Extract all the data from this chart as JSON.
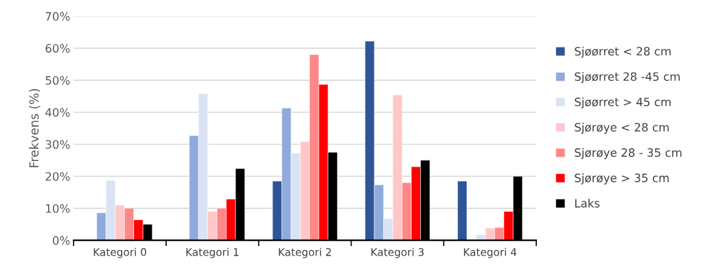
{
  "chart_data": {
    "type": "bar",
    "ylabel": "Frekvens (%)",
    "categories": [
      "Kategori 0",
      "Kategori 1",
      "Kategori 2",
      "Kategori 3",
      "Kategori 4"
    ],
    "series": [
      {
        "name": "Sjøørret < 28 cm",
        "color": "#2f5597",
        "values": [
          null,
          null,
          18.5,
          62.2,
          18.5
        ]
      },
      {
        "name": "Sjøørret 28 -45 cm",
        "color": "#8faadc",
        "values": [
          8.6,
          32.7,
          41.3,
          17.3,
          null
        ]
      },
      {
        "name": "Sjøørret > 45 cm",
        "color": "#dae3f3",
        "values": [
          18.7,
          45.8,
          27.2,
          6.8,
          1.8
        ]
      },
      {
        "name": "Sjørøye < 28 cm",
        "color": "#ffc7c7",
        "values": [
          11,
          9,
          30.8,
          45.4,
          3.8
        ]
      },
      {
        "name": "Sjørøye 28 - 35 cm",
        "color": "#ff8787",
        "values": [
          10,
          10,
          58,
          18,
          4
        ]
      },
      {
        "name": "Sjørøye > 35 cm",
        "color": "#ff0000",
        "values": [
          6.4,
          12.9,
          48.7,
          23,
          9
        ]
      },
      {
        "name": "Laks",
        "color": "#000000",
        "values": [
          5,
          22.4,
          27.5,
          25,
          20
        ]
      }
    ],
    "ylim": [
      0,
      70
    ],
    "yticks": [
      {
        "value": 0,
        "label": "0%"
      },
      {
        "value": 10,
        "label": "10%"
      },
      {
        "value": 20,
        "label": "20%"
      },
      {
        "value": 30,
        "label": "30%"
      },
      {
        "value": 40,
        "label": "40%"
      },
      {
        "value": 50,
        "label": "50%"
      },
      {
        "value": 60,
        "label": "60%"
      },
      {
        "value": 70,
        "label": "70%"
      }
    ],
    "grid": "y",
    "legend": "right"
  }
}
